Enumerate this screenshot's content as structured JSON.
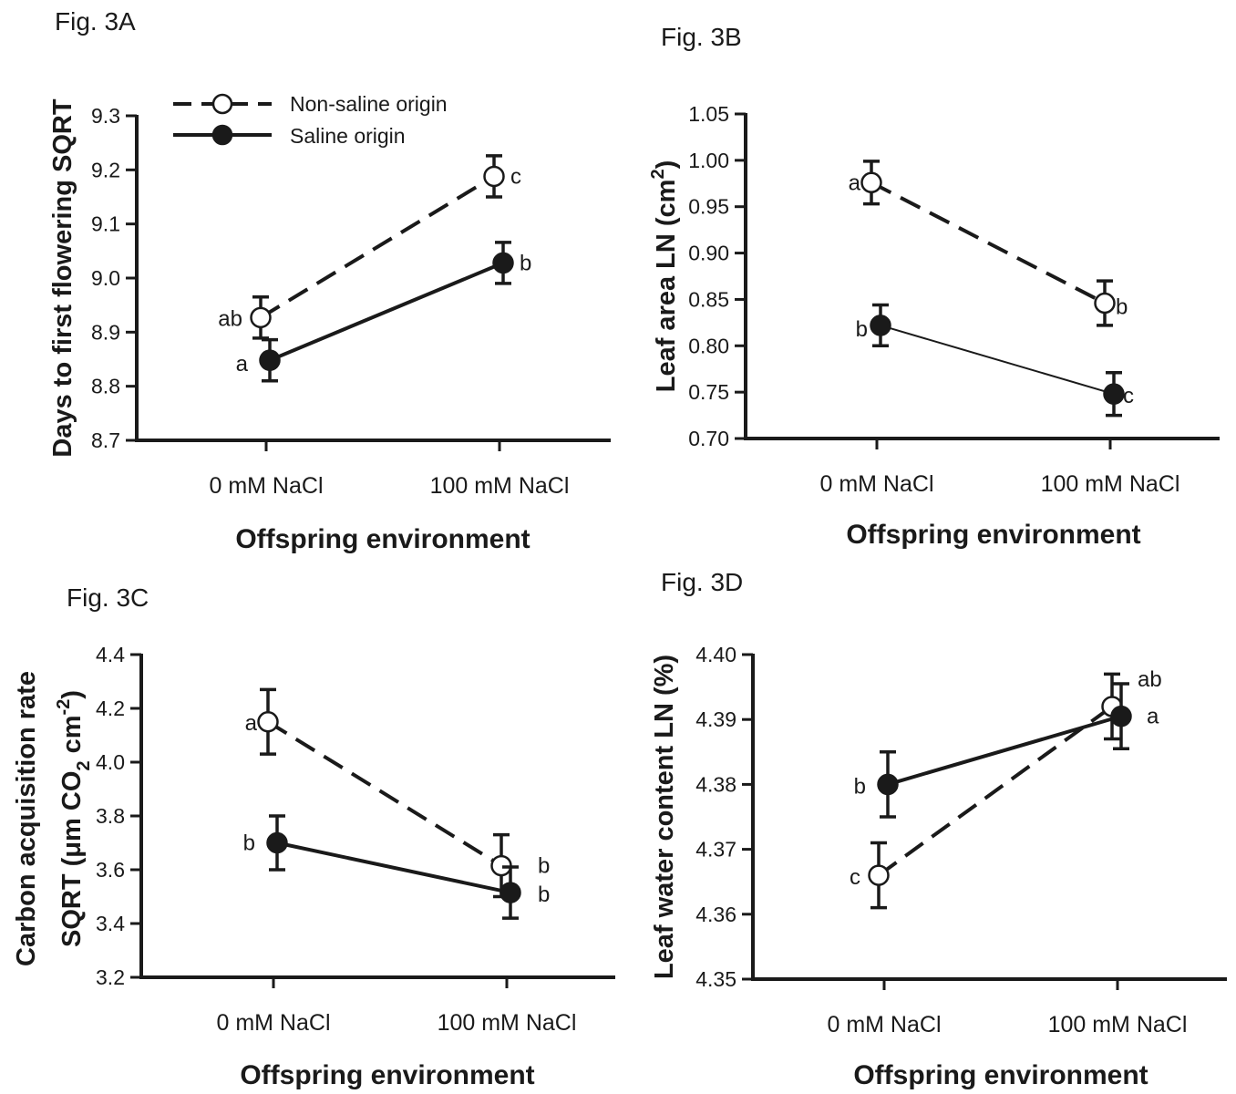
{
  "legend": {
    "items": [
      {
        "label": "Non-saline origin",
        "marker": "open-circle",
        "line": "dashed"
      },
      {
        "label": "Saline origin",
        "marker": "filled-circle",
        "line": "solid"
      }
    ]
  },
  "chart_data": [
    {
      "type": "line",
      "title": "Fig. 3A",
      "xlabel": "Offspring environment",
      "ylabel": "Days to first flowering SQRT",
      "categories": [
        "0 mM NaCl",
        "100 mM NaCl"
      ],
      "ylim": [
        8.7,
        9.3
      ],
      "yticks": [
        "8.7",
        "8.8",
        "8.9",
        "9.0",
        "9.1",
        "9.2",
        "9.3"
      ],
      "series": [
        {
          "name": "Non-saline origin",
          "values": [
            8.927,
            9.188
          ],
          "errors": [
            0.038,
            0.038
          ],
          "letters": [
            "ab",
            "c"
          ]
        },
        {
          "name": "Saline origin",
          "values": [
            8.848,
            9.028
          ],
          "errors": [
            0.038,
            0.038
          ],
          "letters": [
            "a",
            "b"
          ]
        }
      ]
    },
    {
      "type": "line",
      "title": "Fig. 3B",
      "xlabel": "Offspring environment",
      "ylabel": "Leaf area LN (cm",
      "ylabel_sup": "2",
      "ylabel_end": ")",
      "categories": [
        "0 mM NaCl",
        "100 mM NaCl"
      ],
      "ylim": [
        0.7,
        1.05
      ],
      "yticks": [
        "0.70",
        "0.75",
        "0.80",
        "0.85",
        "0.90",
        "0.95",
        "1.00",
        "1.05"
      ],
      "series": [
        {
          "name": "Non-saline origin",
          "values": [
            0.976,
            0.846
          ],
          "errors": [
            0.023,
            0.024
          ],
          "letters": [
            "a",
            "b"
          ]
        },
        {
          "name": "Saline origin",
          "values": [
            0.822,
            0.748
          ],
          "errors": [
            0.022,
            0.023
          ],
          "letters": [
            "b",
            "c"
          ]
        }
      ]
    },
    {
      "type": "line",
      "title": "Fig. 3C",
      "xlabel": "Offspring environment",
      "ylabel": "Carbon acquisition rate",
      "ylabel2": "SQRT (μm CO",
      "ylabel2_sub": "2",
      "ylabel2_mid": " cm",
      "ylabel2_sup": "-2",
      "ylabel2_end": ")",
      "categories": [
        "0 mM NaCl",
        "100 mM NaCl"
      ],
      "ylim": [
        3.2,
        4.4
      ],
      "yticks": [
        "3.2",
        "3.4",
        "3.6",
        "3.8",
        "4.0",
        "4.2",
        "4.4"
      ],
      "series": [
        {
          "name": "Non-saline origin",
          "values": [
            4.15,
            3.615
          ],
          "errors": [
            0.12,
            0.115
          ],
          "letters": [
            "a",
            "b"
          ]
        },
        {
          "name": "Saline origin",
          "values": [
            3.7,
            3.515
          ],
          "errors": [
            0.1,
            0.095
          ],
          "letters": [
            "b",
            "b"
          ]
        }
      ]
    },
    {
      "type": "line",
      "title": "Fig. 3D",
      "xlabel": "Offspring environment",
      "ylabel": "Leaf water content LN (%)",
      "categories": [
        "0 mM NaCl",
        "100 mM NaCl"
      ],
      "ylim": [
        4.35,
        4.4
      ],
      "yticks": [
        "4.35",
        "4.36",
        "4.37",
        "4.38",
        "4.39",
        "4.40"
      ],
      "series": [
        {
          "name": "Non-saline origin",
          "values": [
            4.366,
            4.392
          ],
          "errors": [
            0.005,
            0.005
          ],
          "letters": [
            "c",
            "ab"
          ]
        },
        {
          "name": "Saline origin",
          "values": [
            4.38,
            4.3905
          ],
          "errors": [
            0.005,
            0.005
          ],
          "letters": [
            "b",
            "a"
          ]
        }
      ]
    }
  ]
}
